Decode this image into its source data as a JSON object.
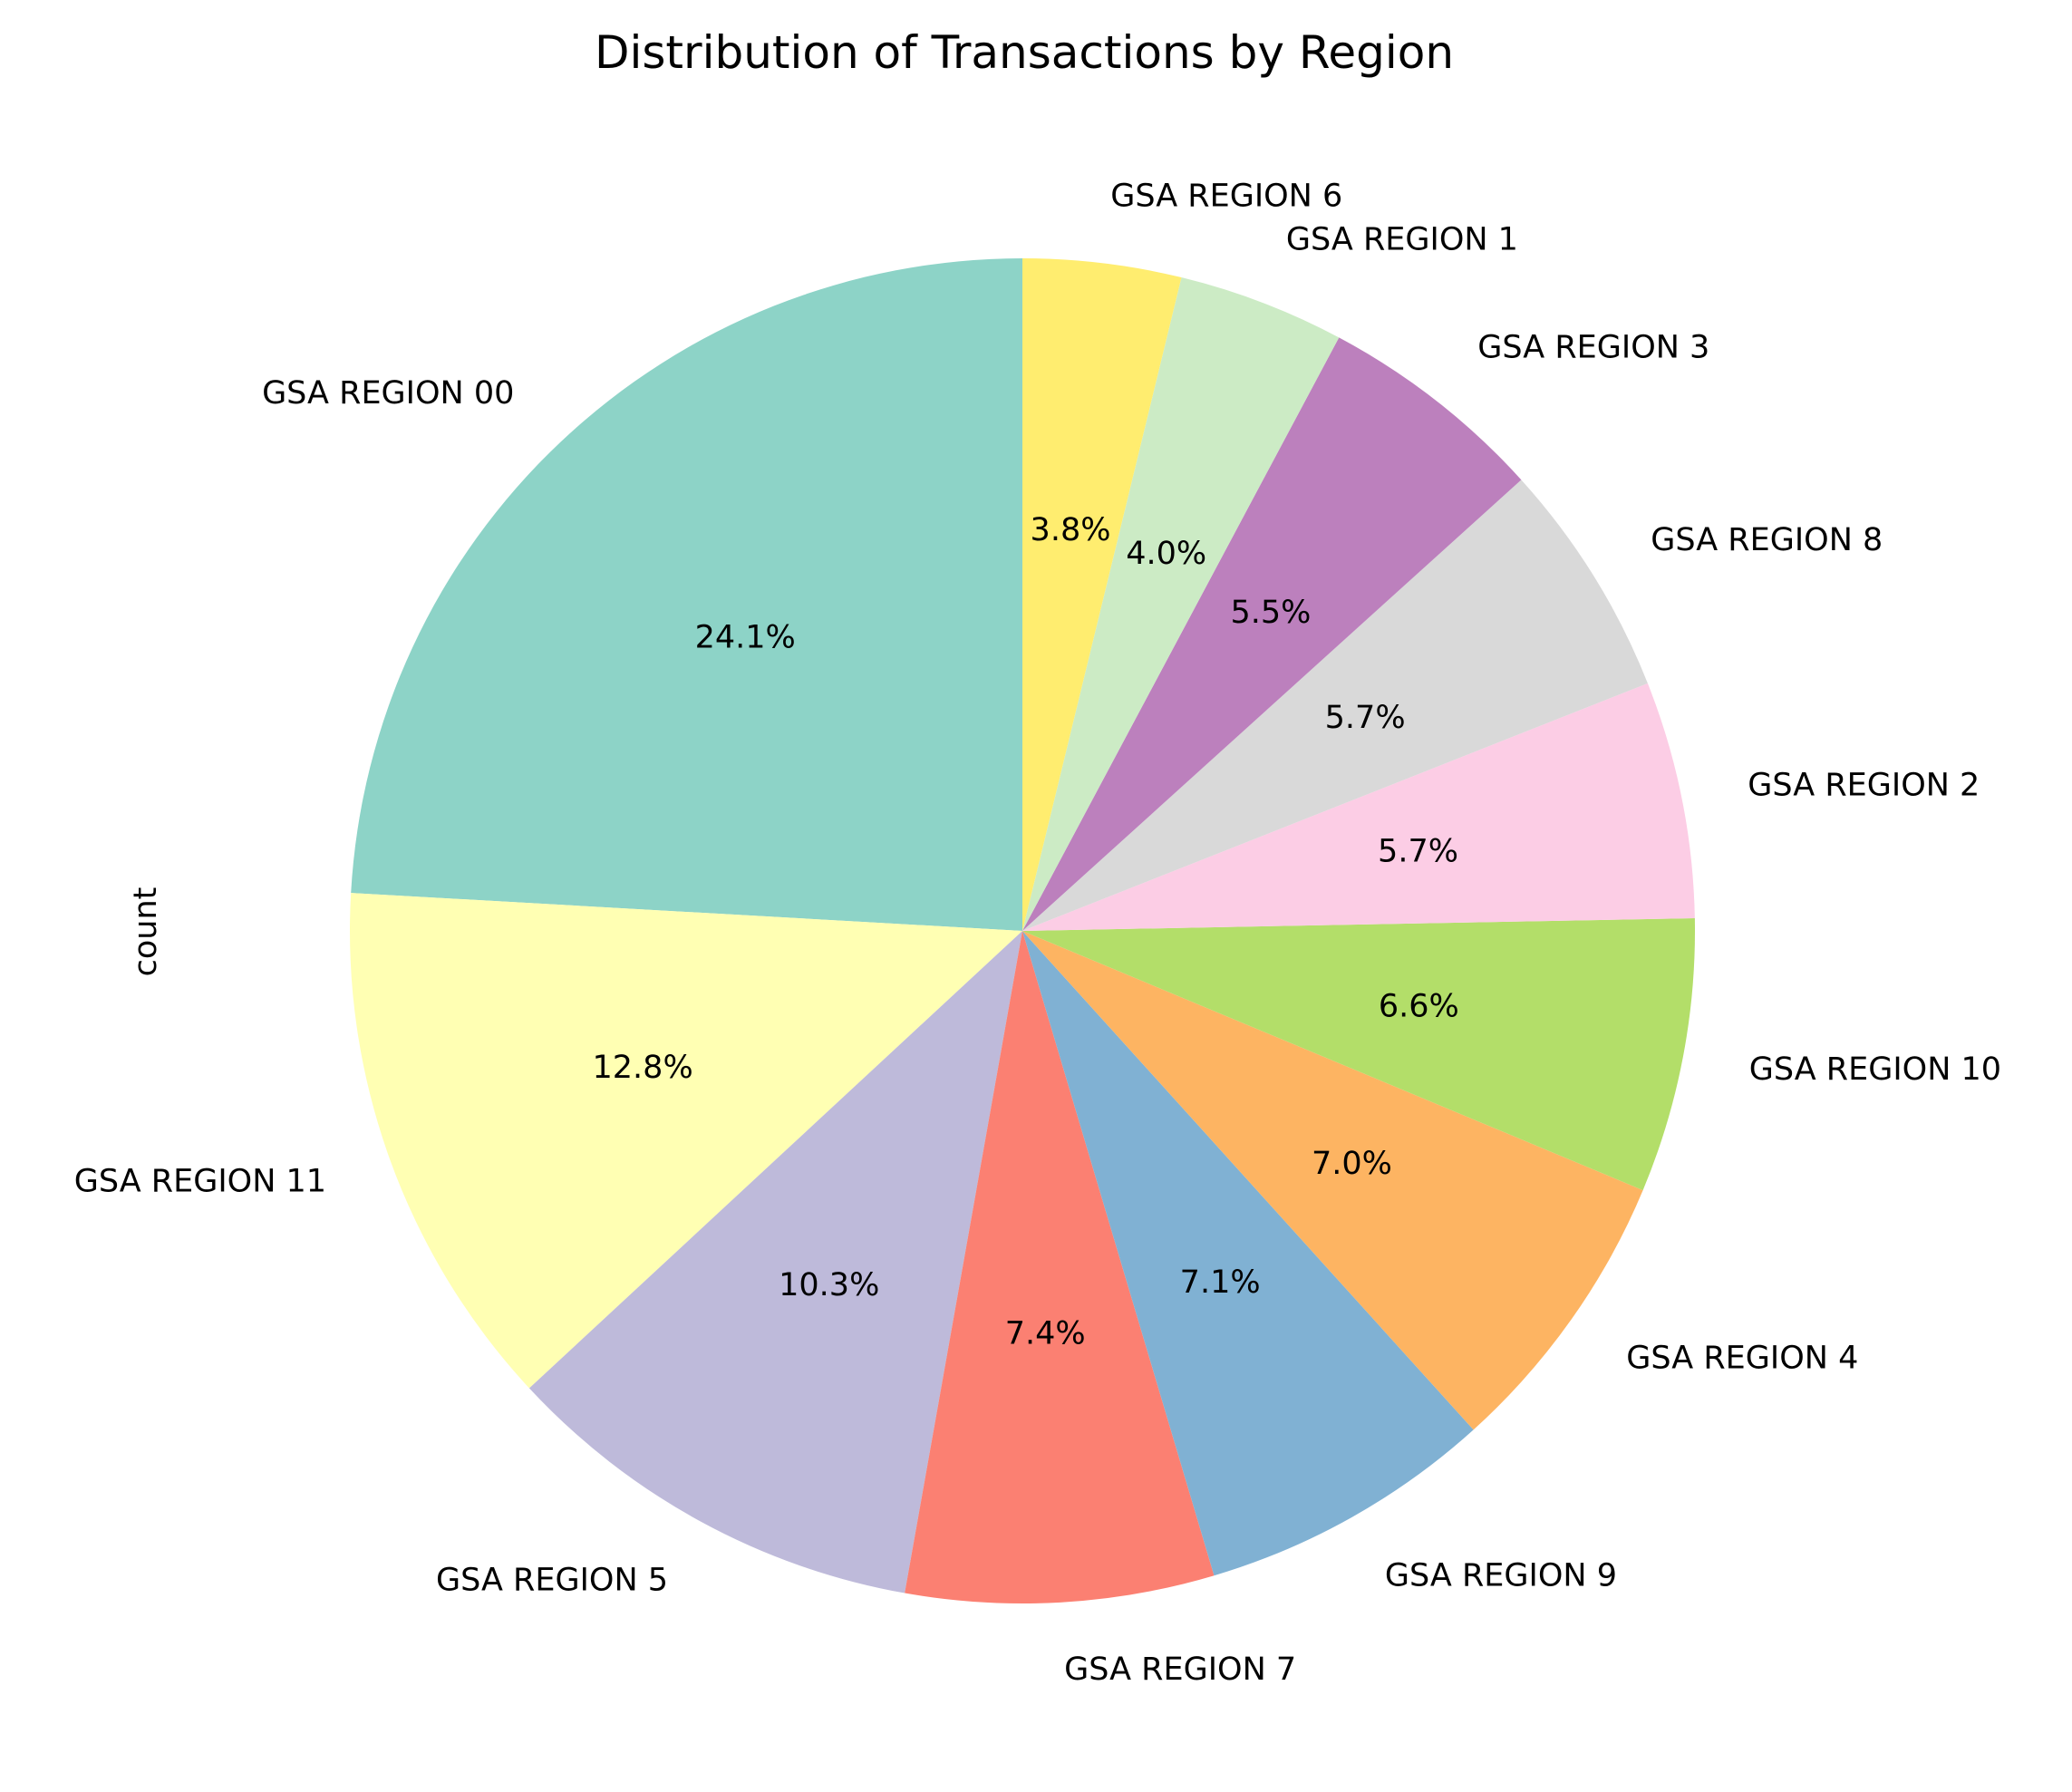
{
  "chart_data": {
    "type": "pie",
    "title": "Distribution of Transactions by Region",
    "ylabel": "count",
    "start_angle_deg": 90,
    "direction": "counterclockwise",
    "label_format": "percent_1_decimal",
    "categories": [
      "GSA REGION 00",
      "GSA REGION 11",
      "GSA REGION 5",
      "GSA REGION 7",
      "GSA REGION 9",
      "GSA REGION 4",
      "GSA REGION 10",
      "GSA REGION 2",
      "GSA REGION 8",
      "GSA REGION 3",
      "GSA REGION 1",
      "GSA REGION 6"
    ],
    "percent_labels": [
      "24.1%",
      "12.8%",
      "10.3%",
      "7.4%",
      "7.1%",
      "7.0%",
      "6.6%",
      "5.7%",
      "5.7%",
      "5.5%",
      "4.0%",
      "3.8%"
    ],
    "values": [
      24.1,
      12.8,
      10.3,
      7.4,
      7.1,
      7.0,
      6.6,
      5.7,
      5.7,
      5.5,
      4.0,
      3.8
    ],
    "colors": [
      "#8dd3c7",
      "#ffffb3",
      "#bebada",
      "#fb8072",
      "#80b1d3",
      "#fdb462",
      "#b3de69",
      "#fccde5",
      "#d9d9d9",
      "#bc80bd",
      "#ccebc5",
      "#ffed6f"
    ]
  }
}
